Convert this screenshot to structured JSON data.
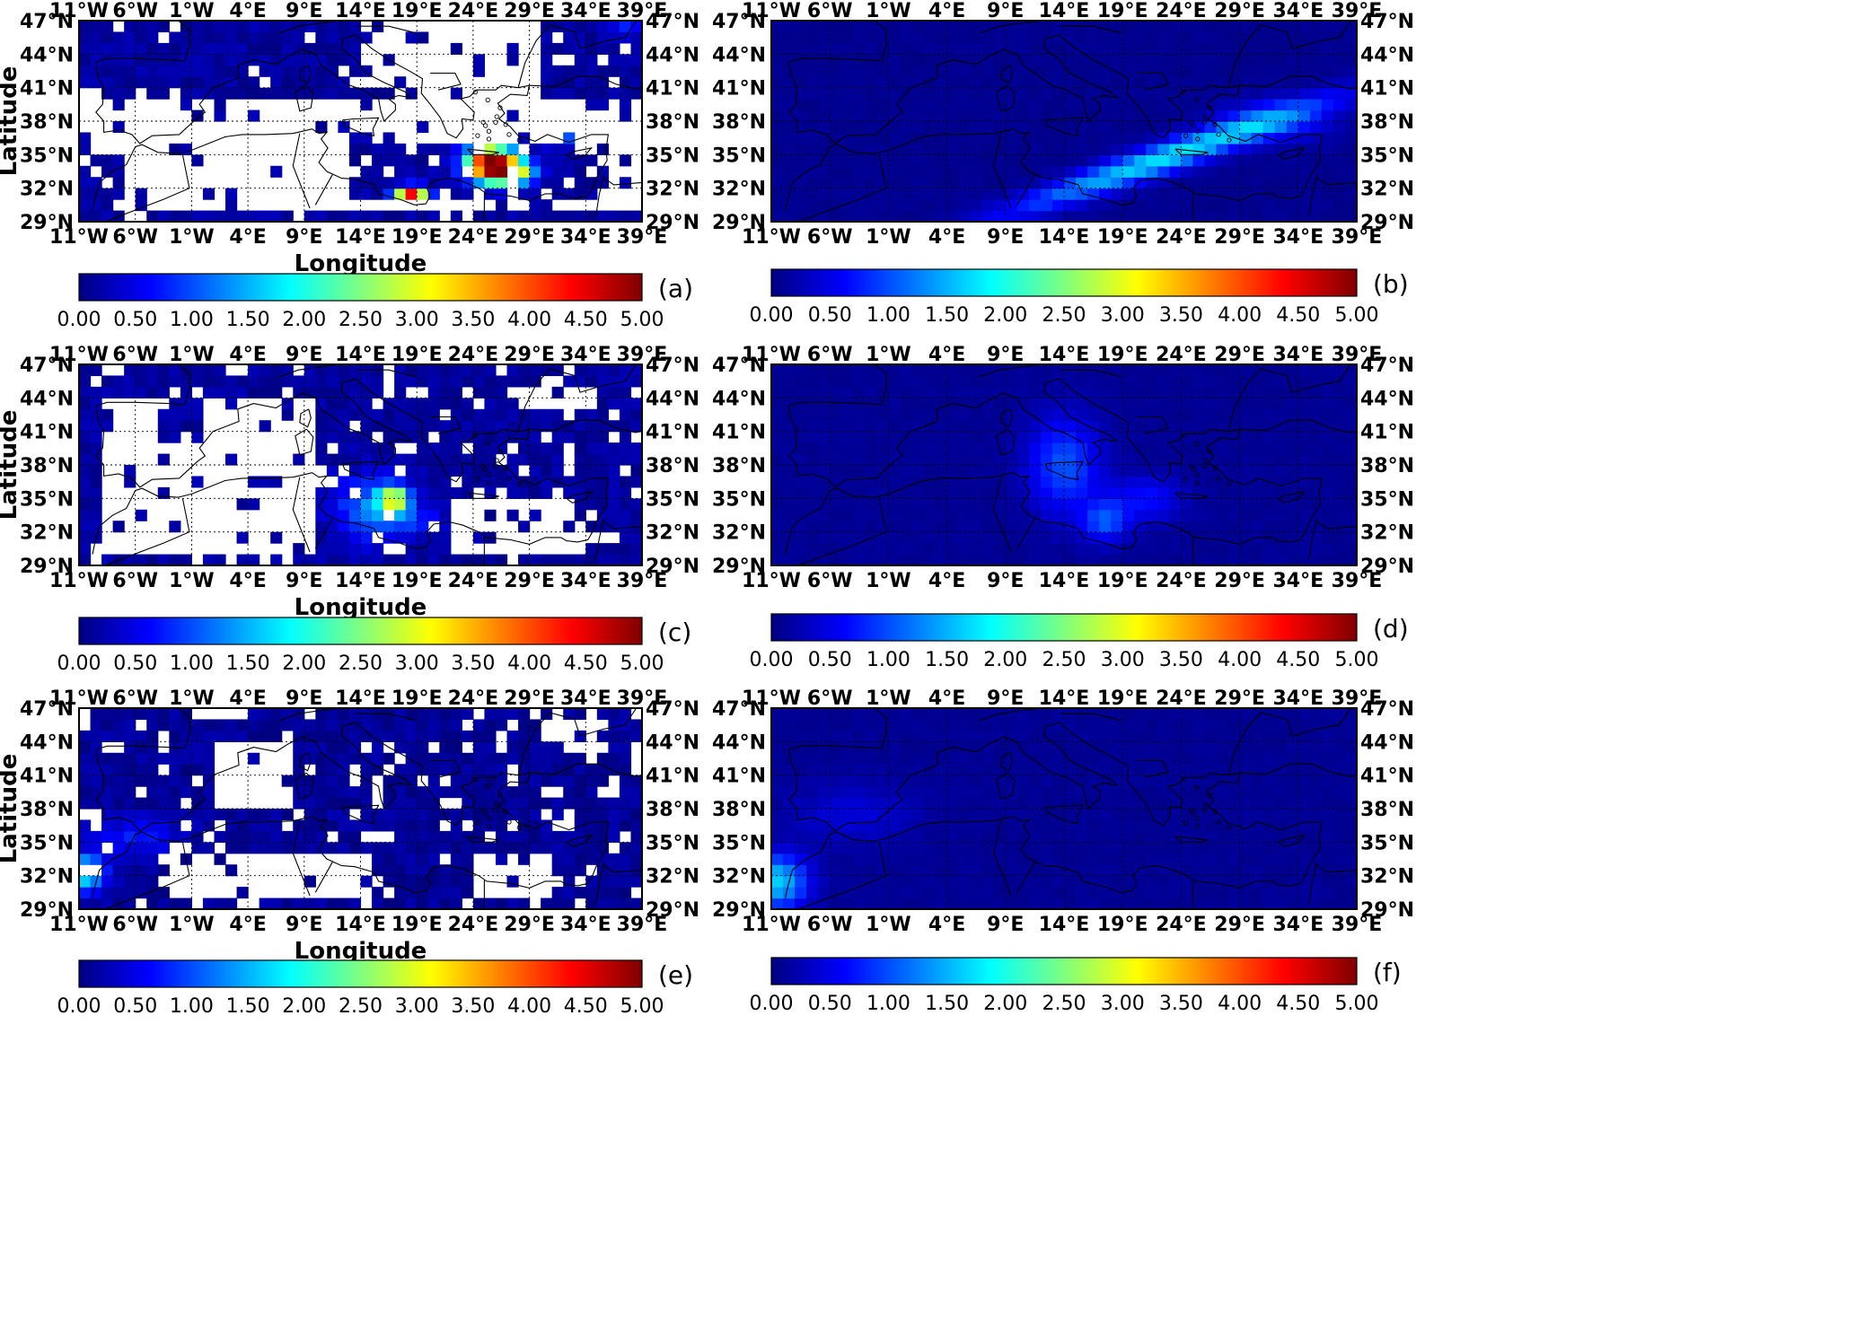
{
  "figure": {
    "lon_ticks": [
      "11°W",
      "6°W",
      "1°W",
      "4°E",
      "9°E",
      "14°E",
      "19°E",
      "24°E",
      "29°E",
      "34°E",
      "39°E"
    ],
    "lat_ticks": [
      "47°N",
      "44°N",
      "41°N",
      "38°N",
      "35°N",
      "32°N",
      "29°N"
    ],
    "colorbar_ticks": [
      "0.00",
      "0.50",
      "1.00",
      "1.50",
      "2.00",
      "2.50",
      "3.00",
      "3.50",
      "4.00",
      "4.50",
      "5.00"
    ],
    "colormap": [
      "#00007f",
      "#0000ff",
      "#007fff",
      "#00ffff",
      "#7fff7f",
      "#ffff00",
      "#ff7f00",
      "#ff0000",
      "#7f0000"
    ],
    "colorbar_range": [
      0,
      5
    ],
    "panels": [
      {
        "id": "a",
        "tag": "(a)",
        "ylabel": "Latitude",
        "xlabel": "Longitude",
        "data_style": "satellite grid with gaps",
        "hotspot": "Eastern Mediterranean south of Crete, max ~5"
      },
      {
        "id": "b",
        "tag": "(b)",
        "ylabel": "",
        "xlabel": "",
        "data_style": "model field",
        "hotspot": "SW-NE plume Libya to Turkey, max ~2.5"
      },
      {
        "id": "c",
        "tag": "(c)",
        "ylabel": "Latitude",
        "xlabel": "Longitude",
        "data_style": "satellite grid with gaps",
        "hotspot": "Central Mediterranean near 17E 35N, max ~3.5"
      },
      {
        "id": "d",
        "tag": "(d)",
        "ylabel": "",
        "xlabel": "",
        "data_style": "model field",
        "hotspot": "Central Mediterranean S-shaped band, max ~1.8"
      },
      {
        "id": "e",
        "tag": "(e)",
        "ylabel": "Latitude",
        "xlabel": "Longitude",
        "data_style": "satellite grid with gaps",
        "hotspot": "Morocco Atlantic coast, max ~2"
      },
      {
        "id": "f",
        "tag": "(f)",
        "ylabel": "",
        "xlabel": "",
        "data_style": "model field",
        "hotspot": "Morocco Atlantic coast, max ~1.5"
      }
    ]
  }
}
